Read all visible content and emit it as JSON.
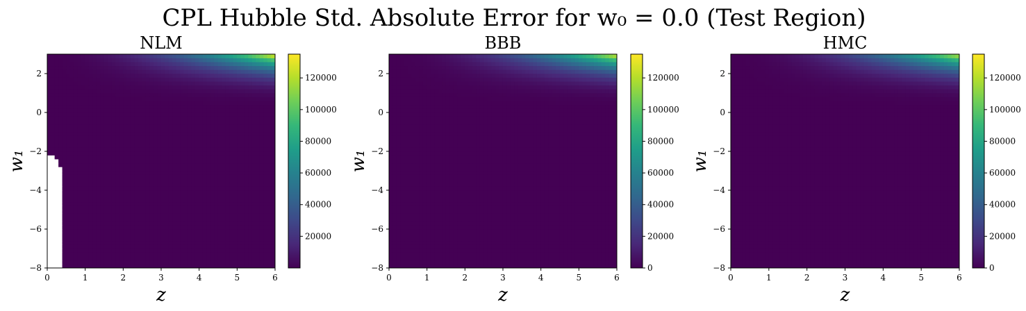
{
  "figure": {
    "suptitle": "CPL Hubble Std. Absolute Error for w₀ = 0.0 (Test Region)"
  },
  "colormap": {
    "name": "viridis",
    "stops": [
      "#440154",
      "#482878",
      "#3e4989",
      "#31688e",
      "#26828e",
      "#1f9e89",
      "#35b779",
      "#6ece58",
      "#b5de2b",
      "#fde725"
    ]
  },
  "chart_data": [
    {
      "type": "heatmap",
      "title": "NLM",
      "xlabel": "z",
      "ylabel": "w₁",
      "xlim": [
        0,
        6
      ],
      "ylim": [
        -8,
        3
      ],
      "xticks": [
        "0",
        "1",
        "2",
        "3",
        "4",
        "5",
        "6"
      ],
      "yticks": [
        "−8",
        "−6",
        "−4",
        "−2",
        "0",
        "2"
      ],
      "colorbar": {
        "min": 0,
        "max": 135000,
        "ticks": [
          "20000",
          "40000",
          "60000",
          "80000",
          "100000",
          "120000"
        ]
      },
      "peak": {
        "value": 135000,
        "location": "top-right (z = 6, w₁ = 3)"
      },
      "missing_region": "white (no value) band for z < ~0.4 and w₁ < ~-2.1"
    },
    {
      "type": "heatmap",
      "title": "BBB",
      "xlabel": "z",
      "ylabel": "w₁",
      "xlim": [
        0,
        6
      ],
      "ylim": [
        -8,
        3
      ],
      "xticks": [
        "0",
        "1",
        "2",
        "3",
        "4",
        "5",
        "6"
      ],
      "yticks": [
        "−8",
        "−6",
        "−4",
        "−2",
        "0",
        "2"
      ],
      "colorbar": {
        "min": 0,
        "max": 135000,
        "ticks": [
          "0",
          "20000",
          "40000",
          "60000",
          "80000",
          "100000",
          "120000"
        ]
      },
      "peak": {
        "value": 130000,
        "location": "top-right (z = 6, w₁ = 3)"
      }
    },
    {
      "type": "heatmap",
      "title": "HMC",
      "xlabel": "z",
      "ylabel": "w₁",
      "xlim": [
        0,
        6
      ],
      "ylim": [
        -8,
        3
      ],
      "xticks": [
        "0",
        "1",
        "2",
        "3",
        "4",
        "5",
        "6"
      ],
      "yticks": [
        "−8",
        "−6",
        "−4",
        "−2",
        "0",
        "2"
      ],
      "colorbar": {
        "min": 0,
        "max": 135000,
        "ticks": [
          "0",
          "20000",
          "40000",
          "60000",
          "80000",
          "100000",
          "120000"
        ]
      },
      "peak": {
        "value": 125000,
        "location": "top-right (z = 6, w₁ = 3)"
      }
    }
  ]
}
